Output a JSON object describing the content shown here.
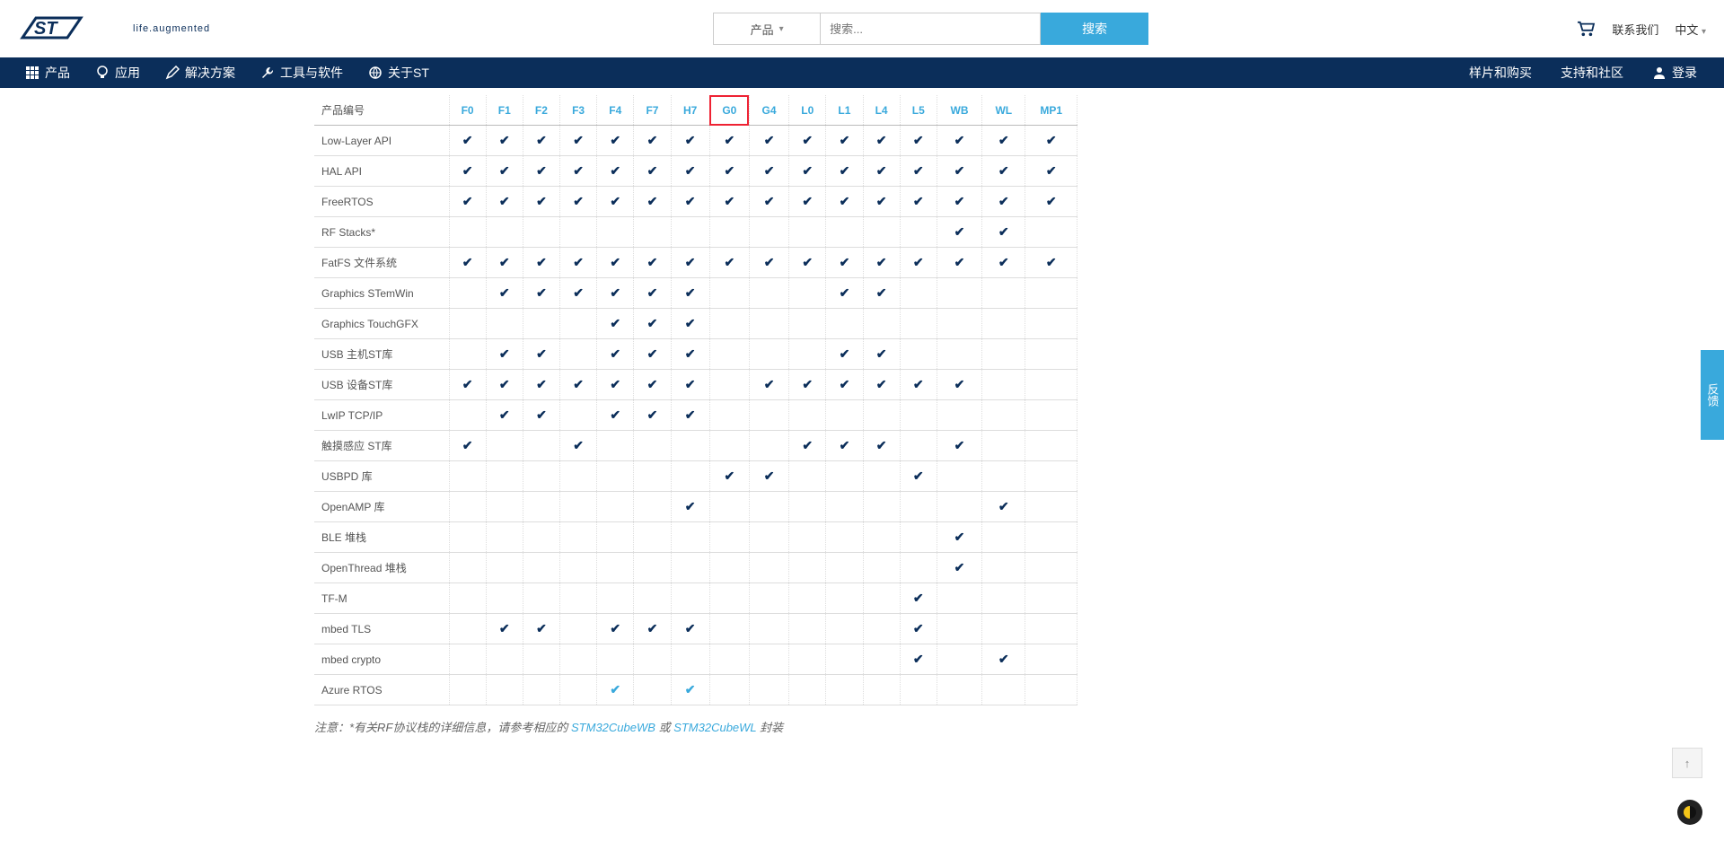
{
  "top": {
    "logo_tagline": "life.augmented",
    "product_dd": "产品",
    "search_placeholder": "搜索...",
    "search_btn": "搜索",
    "contact": "联系我们",
    "lang": "中文"
  },
  "nav": {
    "products": "产品",
    "applications": "应用",
    "solutions": "解决方案",
    "tools": "工具与软件",
    "about": "关于ST",
    "samples": "样片和购买",
    "support": "支持和社区",
    "login": "登录"
  },
  "table": {
    "first_col_header": "产品编号",
    "columns": [
      "F0",
      "F1",
      "F2",
      "F3",
      "F4",
      "F7",
      "H7",
      "G0",
      "G4",
      "L0",
      "L1",
      "L4",
      "L5",
      "WB",
      "WL",
      "MP1"
    ],
    "highlight_col_index": 7,
    "rows": [
      {
        "label": "Low-Layer API",
        "cells": [
          1,
          1,
          1,
          1,
          1,
          1,
          1,
          1,
          1,
          1,
          1,
          1,
          1,
          1,
          1,
          1
        ]
      },
      {
        "label": "HAL API",
        "cells": [
          1,
          1,
          1,
          1,
          1,
          1,
          1,
          1,
          1,
          1,
          1,
          1,
          1,
          1,
          1,
          1
        ]
      },
      {
        "label": "FreeRTOS",
        "cells": [
          1,
          1,
          1,
          1,
          1,
          1,
          1,
          1,
          1,
          1,
          1,
          1,
          1,
          1,
          1,
          1
        ]
      },
      {
        "label": "RF Stacks*",
        "cells": [
          0,
          0,
          0,
          0,
          0,
          0,
          0,
          0,
          0,
          0,
          0,
          0,
          0,
          1,
          1,
          0
        ]
      },
      {
        "label": "FatFS 文件系统",
        "cells": [
          1,
          1,
          1,
          1,
          1,
          1,
          1,
          1,
          1,
          1,
          1,
          1,
          1,
          1,
          1,
          1
        ]
      },
      {
        "label": "Graphics STemWin",
        "cells": [
          0,
          1,
          1,
          1,
          1,
          1,
          1,
          0,
          0,
          0,
          1,
          1,
          0,
          0,
          0,
          0
        ]
      },
      {
        "label": "Graphics TouchGFX",
        "cells": [
          0,
          0,
          0,
          0,
          1,
          1,
          1,
          0,
          0,
          0,
          0,
          0,
          0,
          0,
          0,
          0
        ]
      },
      {
        "label": "USB 主机ST库",
        "cells": [
          0,
          1,
          1,
          0,
          1,
          1,
          1,
          0,
          0,
          0,
          1,
          1,
          0,
          0,
          0,
          0
        ]
      },
      {
        "label": "USB 设备ST库",
        "cells": [
          1,
          1,
          1,
          1,
          1,
          1,
          1,
          0,
          1,
          1,
          1,
          1,
          1,
          1,
          0,
          0
        ]
      },
      {
        "label": "LwIP TCP/IP",
        "cells": [
          0,
          1,
          1,
          0,
          1,
          1,
          1,
          0,
          0,
          0,
          0,
          0,
          0,
          0,
          0,
          0
        ]
      },
      {
        "label": "触摸感应 ST库",
        "cells": [
          1,
          0,
          0,
          1,
          0,
          0,
          0,
          0,
          0,
          1,
          1,
          1,
          0,
          1,
          0,
          0
        ]
      },
      {
        "label": "USBPD 库",
        "cells": [
          0,
          0,
          0,
          0,
          0,
          0,
          0,
          1,
          1,
          0,
          0,
          0,
          1,
          0,
          0,
          0
        ]
      },
      {
        "label": "OpenAMP 库",
        "cells": [
          0,
          0,
          0,
          0,
          0,
          0,
          1,
          0,
          0,
          0,
          0,
          0,
          0,
          0,
          1,
          0
        ]
      },
      {
        "label": "BLE 堆栈",
        "cells": [
          0,
          0,
          0,
          0,
          0,
          0,
          0,
          0,
          0,
          0,
          0,
          0,
          0,
          1,
          0,
          0
        ]
      },
      {
        "label": "OpenThread 堆栈",
        "cells": [
          0,
          0,
          0,
          0,
          0,
          0,
          0,
          0,
          0,
          0,
          0,
          0,
          0,
          1,
          0,
          0
        ]
      },
      {
        "label": "TF-M",
        "cells": [
          0,
          0,
          0,
          0,
          0,
          0,
          0,
          0,
          0,
          0,
          0,
          0,
          1,
          0,
          0,
          0
        ]
      },
      {
        "label": "mbed TLS",
        "cells": [
          0,
          1,
          1,
          0,
          1,
          1,
          1,
          0,
          0,
          0,
          0,
          0,
          1,
          0,
          0,
          0
        ]
      },
      {
        "label": "mbed crypto",
        "cells": [
          0,
          0,
          0,
          0,
          0,
          0,
          0,
          0,
          0,
          0,
          0,
          0,
          1,
          0,
          1,
          0
        ]
      },
      {
        "label": "Azure RTOS",
        "cells": [
          0,
          0,
          0,
          0,
          2,
          0,
          2,
          0,
          0,
          0,
          0,
          0,
          0,
          0,
          0,
          0
        ]
      }
    ]
  },
  "footnote": {
    "prefix": "注意：*有关RF协议栈的详细信息，请参考相应的 ",
    "link1": "STM32CubeWB",
    "mid": " 或 ",
    "link2": "STM32CubeWL",
    "suffix": " 封装"
  },
  "feedback_tab": "反馈"
}
